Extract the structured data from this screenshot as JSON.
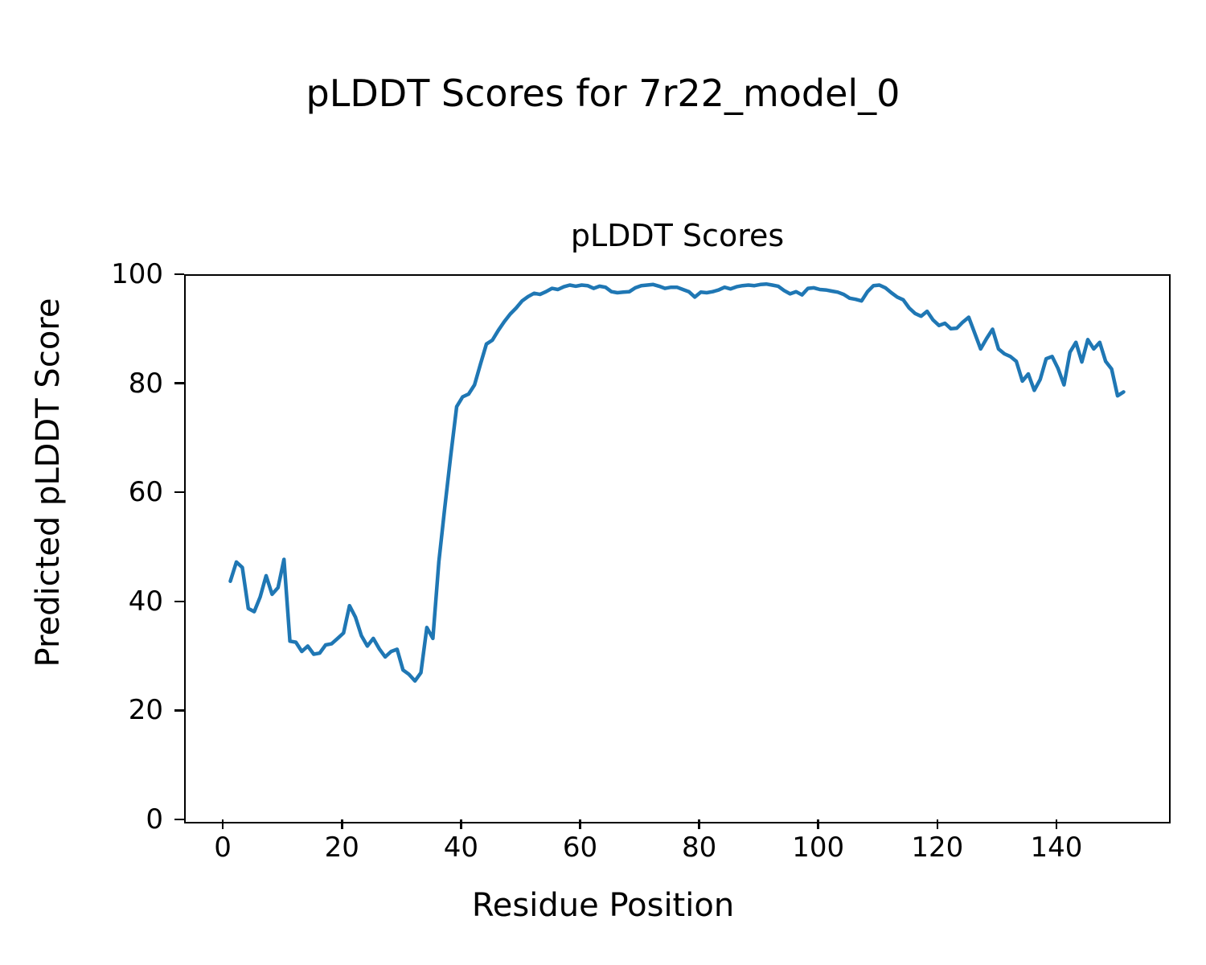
{
  "figure": {
    "suptitle": "pLDDT Scores for 7r22_model_0",
    "background_color": "#ffffff",
    "text_color": "#000000"
  },
  "chart_data": {
    "type": "line",
    "title": "pLDDT Scores",
    "xlabel": "Residue Position",
    "ylabel": "Predicted pLDDT Score",
    "xlim": [
      -6.5,
      158.5
    ],
    "ylim": [
      0,
      100
    ],
    "xticks": [
      0,
      20,
      40,
      60,
      80,
      100,
      120,
      140
    ],
    "yticks": [
      0,
      20,
      40,
      60,
      80,
      100
    ],
    "grid": false,
    "legend": null,
    "line_color": "#1f77b4",
    "line_width": 4.5,
    "series_name": "pLDDT",
    "x": [
      1,
      2,
      3,
      4,
      5,
      6,
      7,
      8,
      9,
      10,
      11,
      12,
      13,
      14,
      15,
      16,
      17,
      18,
      19,
      20,
      21,
      22,
      23,
      24,
      25,
      26,
      27,
      28,
      29,
      30,
      31,
      32,
      33,
      34,
      35,
      36,
      37,
      38,
      39,
      40,
      41,
      42,
      43,
      44,
      45,
      46,
      47,
      48,
      49,
      50,
      51,
      52,
      53,
      54,
      55,
      56,
      57,
      58,
      59,
      60,
      61,
      62,
      63,
      64,
      65,
      66,
      67,
      68,
      69,
      70,
      71,
      72,
      73,
      74,
      75,
      76,
      77,
      78,
      79,
      80,
      81,
      82,
      83,
      84,
      85,
      86,
      87,
      88,
      89,
      90,
      91,
      92,
      93,
      94,
      95,
      96,
      97,
      98,
      99,
      100,
      101,
      102,
      103,
      104,
      105,
      106,
      107,
      108,
      109,
      110,
      111,
      112,
      113,
      114,
      115,
      116,
      117,
      118,
      119,
      120,
      121,
      122,
      123,
      124,
      125,
      126,
      127,
      128,
      129,
      130,
      131,
      132,
      133,
      134,
      135,
      136,
      137,
      138,
      139,
      140,
      141,
      142,
      143,
      144,
      145,
      146,
      147,
      148,
      149,
      150,
      151
    ],
    "y": [
      44.0,
      47.5,
      46.5,
      39.0,
      38.4,
      41.1,
      45.0,
      41.6,
      42.8,
      48.0,
      33.0,
      32.8,
      31.1,
      32.1,
      30.6,
      30.8,
      32.3,
      32.5,
      33.5,
      34.5,
      39.5,
      37.4,
      34.0,
      32.1,
      33.5,
      31.6,
      30.1,
      31.1,
      31.5,
      27.7,
      26.9,
      25.7,
      27.2,
      35.5,
      33.5,
      47.5,
      57.5,
      67.0,
      76.0,
      77.8,
      78.3,
      80.0,
      83.8,
      87.5,
      88.2,
      90.0,
      91.6,
      93.0,
      94.1,
      95.4,
      96.2,
      96.8,
      96.6,
      97.1,
      97.7,
      97.5,
      98.0,
      98.3,
      98.1,
      98.3,
      98.2,
      97.7,
      98.1,
      97.9,
      97.1,
      96.9,
      97.0,
      97.1,
      97.8,
      98.2,
      98.3,
      98.4,
      98.1,
      97.7,
      97.9,
      97.9,
      97.5,
      97.1,
      96.1,
      97.0,
      96.9,
      97.1,
      97.4,
      97.9,
      97.6,
      98.0,
      98.2,
      98.3,
      98.2,
      98.4,
      98.5,
      98.3,
      98.1,
      97.3,
      96.7,
      97.1,
      96.5,
      97.7,
      97.8,
      97.5,
      97.4,
      97.2,
      97.0,
      96.6,
      95.9,
      95.7,
      95.4,
      97.1,
      98.2,
      98.3,
      97.8,
      96.9,
      96.1,
      95.6,
      94.1,
      93.1,
      92.6,
      93.5,
      91.9,
      90.9,
      91.3,
      90.3,
      90.4,
      91.5,
      92.4,
      89.5,
      86.6,
      88.5,
      90.2,
      86.6,
      85.7,
      85.2,
      84.3,
      80.7,
      82.0,
      79.0,
      81.0,
      84.8,
      85.2,
      83.0,
      80.0,
      86.0,
      87.8,
      84.2,
      88.3,
      86.6,
      87.8,
      84.3,
      82.9,
      78.0,
      78.7
    ]
  }
}
